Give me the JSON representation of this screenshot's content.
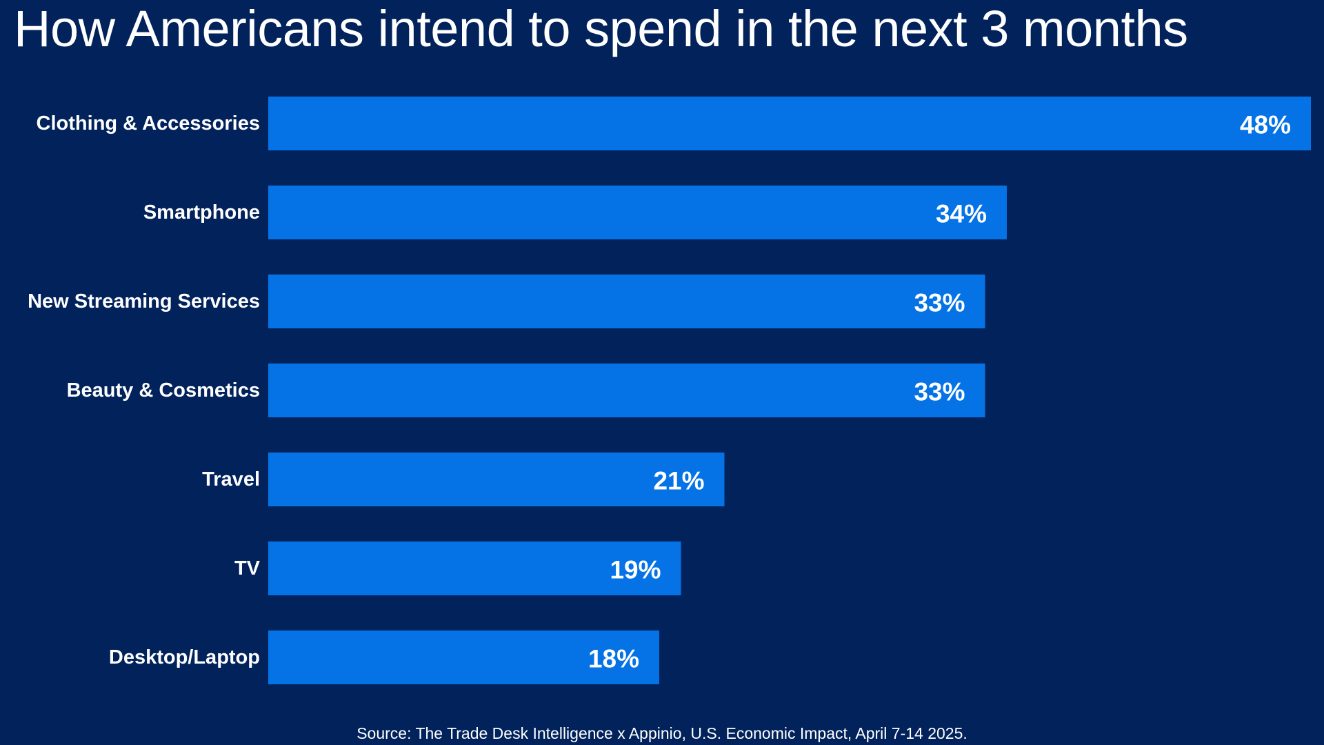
{
  "chart_data": {
    "type": "bar",
    "orientation": "horizontal",
    "title": "How Americans intend to spend in the next 3 months",
    "categories": [
      "Clothing & Accessories",
      "Smartphone",
      "New Streaming Services",
      "Beauty & Cosmetics",
      "Travel",
      "TV",
      "Desktop/Laptop"
    ],
    "values": [
      48,
      34,
      33,
      33,
      21,
      19,
      18
    ],
    "value_labels": [
      "48%",
      "34%",
      "33%",
      "33%",
      "21%",
      "19%",
      "18%"
    ],
    "unit": "%",
    "xlim": [
      0,
      48
    ],
    "grid": false,
    "legend": "none",
    "source": "Source: The Trade Desk Intelligence x Appinio, U.S. Economic Impact, April 7-14 2025."
  },
  "colors": {
    "background": "#01225b",
    "bar": "#0573e6",
    "text": "#ffffff"
  }
}
